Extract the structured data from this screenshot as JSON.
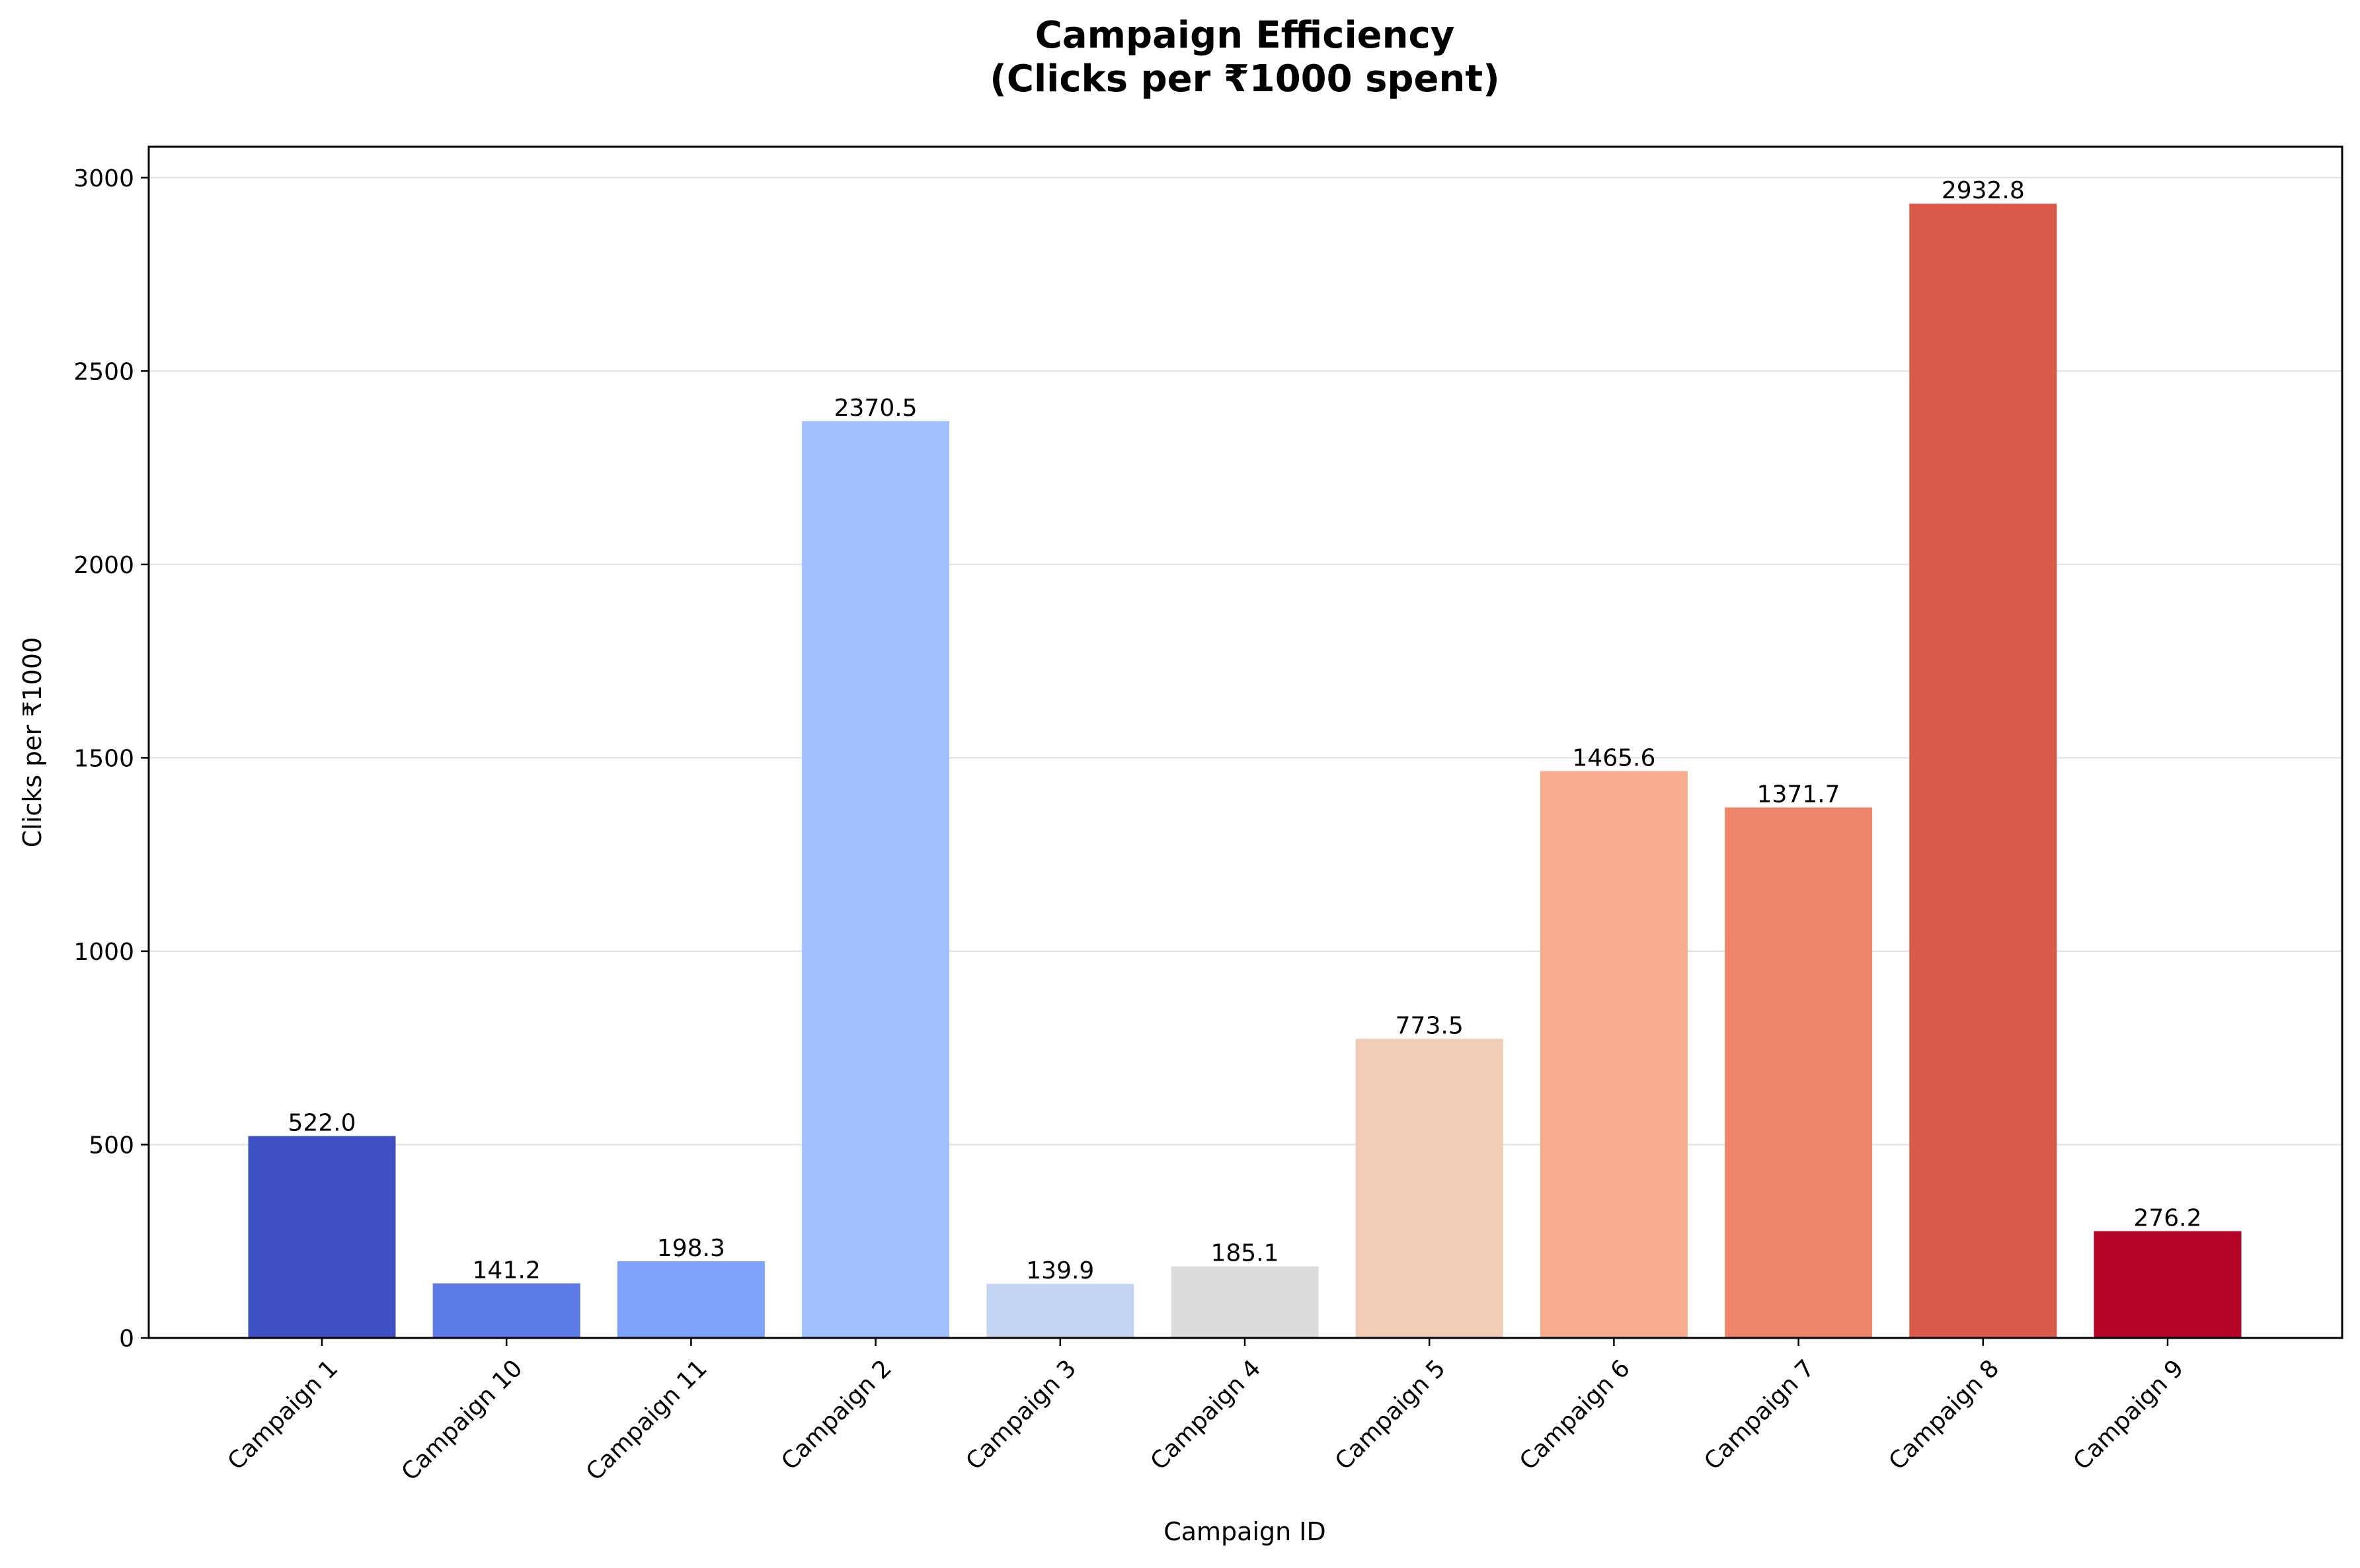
{
  "chart_data": {
    "type": "bar",
    "title_lines": [
      "Campaign Efficiency",
      "(Clicks per ₹1000 spent)"
    ],
    "xlabel": "Campaign ID",
    "ylabel": "Clicks per ₹1000",
    "categories": [
      "Campaign 1",
      "Campaign 10",
      "Campaign 11",
      "Campaign 2",
      "Campaign 3",
      "Campaign 4",
      "Campaign 5",
      "Campaign 6",
      "Campaign 7",
      "Campaign 8",
      "Campaign 9"
    ],
    "values": [
      522.0,
      141.2,
      198.3,
      2370.5,
      139.9,
      185.1,
      773.5,
      1465.6,
      1371.7,
      2932.8,
      276.2
    ],
    "value_labels": [
      "522.0",
      "141.2",
      "198.3",
      "2370.5",
      "139.9",
      "185.1",
      "773.5",
      "1465.6",
      "1371.7",
      "2932.8",
      "276.2"
    ],
    "colors": [
      "#3d50c3",
      "#5b7ae5",
      "#7ea1fa",
      "#a1c0ff",
      "#c4d5f3",
      "#dddcdc",
      "#f2cbb7",
      "#f7ac8e",
      "#ee8468",
      "#d95847",
      "#b40426"
    ],
    "ylim": [
      0,
      3080
    ],
    "yticks": [
      0,
      500,
      1000,
      1500,
      2000,
      2500,
      3000
    ],
    "ytick_labels": [
      "0",
      "500",
      "1000",
      "1500",
      "2000",
      "2500",
      "3000"
    ],
    "grid": "y-axis only",
    "legend": "none"
  }
}
